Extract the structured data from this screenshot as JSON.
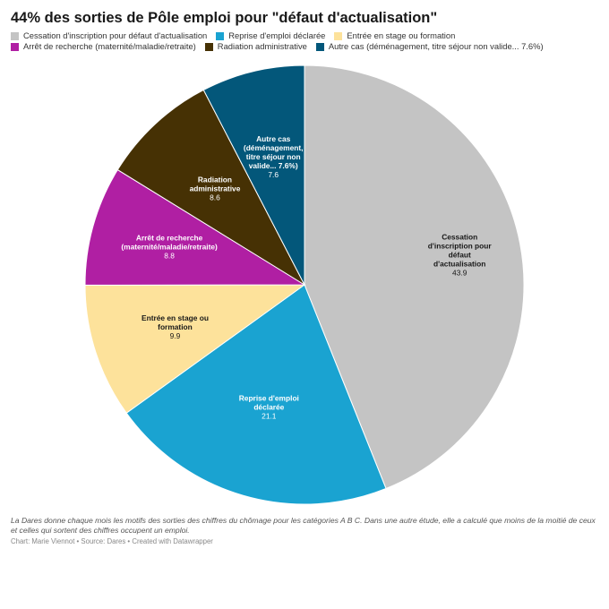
{
  "chart_data": {
    "type": "pie",
    "title": "44% des sorties de Pôle emploi pour \"défaut d'actualisation\"",
    "slices": [
      {
        "name": "Cessation d'inscription pour défaut d'actualisation",
        "label_lines": [
          "Cessation",
          "d'inscription pour",
          "défaut",
          "d'actualisation"
        ],
        "value": 43.9,
        "value_text": "43.9",
        "color": "#c4c4c4",
        "text_color": "#181818"
      },
      {
        "name": "Reprise d'emploi déclarée",
        "label_lines": [
          "Reprise d'emploi",
          "déclarée"
        ],
        "value": 21.1,
        "value_text": "21.1",
        "color": "#1aa3d1",
        "text_color": "#ffffff"
      },
      {
        "name": "Entrée en stage ou formation",
        "label_lines": [
          "Entrée en stage ou",
          "formation"
        ],
        "value": 9.9,
        "value_text": "9.9",
        "color": "#fde29b",
        "text_color": "#181818"
      },
      {
        "name": "Arrêt de recherche (maternité/maladie/retraite)",
        "label_lines": [
          "Arrêt de recherche",
          "(maternité/maladie/retraite)"
        ],
        "value": 8.8,
        "value_text": "8.8",
        "color": "#b01fa3",
        "text_color": "#ffffff"
      },
      {
        "name": "Radiation administrative",
        "label_lines": [
          "Radiation",
          "administrative"
        ],
        "value": 8.6,
        "value_text": "8.6",
        "color": "#463104",
        "text_color": "#ffffff"
      },
      {
        "name": "Autre cas (déménagement, titre séjour non valide... 7.6%)",
        "legend_name": "Autre cas (déménagement, titre séjour non valide... 7.6%)",
        "label_lines": [
          "Autre cas",
          "(déménagement,",
          "titre séjour non",
          "valide... 7.6%)"
        ],
        "value": 7.6,
        "value_text": "7.6",
        "color": "#03577a",
        "text_color": "#ffffff"
      }
    ],
    "legend_placement": "top-left"
  },
  "notes": "La Dares donne chaque mois les motifs des sorties des chiffres du chômage pour les catégories A B C. Dans une autre étude, elle a calculé que moins de la moitié de ceux et celles qui sortent des chiffres occupent un emploi.",
  "credits": "Chart: Marie Viennot • Source: Dares • Created with Datawrapper"
}
